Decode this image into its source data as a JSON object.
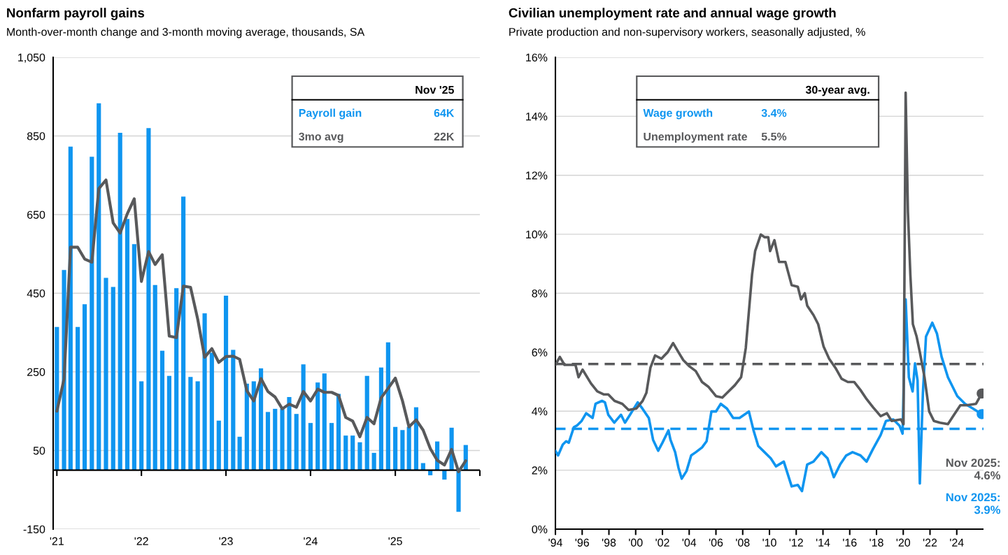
{
  "chart_data": [
    {
      "type": "bar",
      "title": "Nonfarm payroll gains",
      "subtitle": "Month-over-month change and 3-month moving average, thousands, SA",
      "x": [
        "2021-01",
        "2021-02",
        "2021-03",
        "2021-04",
        "2021-05",
        "2021-06",
        "2021-07",
        "2021-08",
        "2021-09",
        "2021-10",
        "2021-11",
        "2021-12",
        "2022-01",
        "2022-02",
        "2022-03",
        "2022-04",
        "2022-05",
        "2022-06",
        "2022-07",
        "2022-08",
        "2022-09",
        "2022-10",
        "2022-11",
        "2022-12",
        "2023-01",
        "2023-02",
        "2023-03",
        "2023-04",
        "2023-05",
        "2023-06",
        "2023-07",
        "2023-08",
        "2023-09",
        "2023-10",
        "2023-11",
        "2023-12",
        "2024-01",
        "2024-02",
        "2024-03",
        "2024-04",
        "2024-05",
        "2024-06",
        "2024-07",
        "2024-08",
        "2024-09",
        "2024-10",
        "2024-11",
        "2024-12",
        "2025-01",
        "2025-02",
        "2025-03",
        "2025-04",
        "2025-05",
        "2025-06",
        "2025-07",
        "2025-08",
        "2025-09",
        "2025-10",
        "2025-11"
      ],
      "series": [
        {
          "name": "Payroll gain",
          "type": "bar",
          "color": "#0f95f0",
          "values": [
            364,
            509,
            823,
            364,
            422,
            797,
            933,
            489,
            466,
            858,
            639,
            575,
            226,
            870,
            471,
            304,
            240,
            463,
            696,
            237,
            226,
            399,
            299,
            126,
            444,
            306,
            85,
            220,
            226,
            259,
            148,
            156,
            156,
            186,
            143,
            269,
            120,
            223,
            246,
            120,
            194,
            88,
            88,
            71,
            240,
            44,
            261,
            325,
            110,
            102,
            110,
            160,
            18,
            -13,
            73,
            -24,
            108,
            -106,
            64
          ]
        },
        {
          "name": "3mo avg",
          "type": "line",
          "color": "#58595b",
          "values": [
            150,
            232,
            567,
            567,
            537,
            529,
            716,
            738,
            629,
            603,
            652,
            690,
            480,
            556,
            523,
            548,
            341,
            337,
            468,
            465,
            384,
            287,
            309,
            274,
            289,
            290,
            282,
            202,
            176,
            233,
            200,
            186,
            156,
            168,
            160,
            200,
            176,
            206,
            198,
            198,
            190,
            134,
            125,
            85,
            134,
            118,
            184,
            208,
            234,
            176,
            110,
            128,
            102,
            55,
            25,
            13,
            53,
            -4,
            24
          ]
        }
      ],
      "legend": "top right",
      "legend_title": "Nov '25",
      "annotations": [
        "64K",
        "22K"
      ],
      "xlim": [
        "2020-12-16",
        "2026-01-01"
      ],
      "xticks": [
        {
          "value": "2021",
          "label": "'21"
        },
        {
          "value": "2022",
          "label": "'22"
        },
        {
          "value": "2023",
          "label": "'23"
        },
        {
          "value": "2024",
          "label": "'24"
        },
        {
          "value": "2025",
          "label": "'25"
        },
        {
          "value": "2026",
          "label": null
        }
      ],
      "ylim": [
        -150,
        1050
      ],
      "yticks": [
        -150,
        50,
        250,
        450,
        650,
        850,
        {
          "value": 1050,
          "label": "1,050"
        }
      ],
      "grid": "y"
    },
    {
      "type": "line",
      "title": "Civilian unemployment rate and annual wage growth",
      "subtitle": "Private production and non-supervisory workers, seasonally adjusted, %",
      "series": [
        {
          "name": "Wage growth",
          "color": "#0f95f0",
          "x": [
            1994.0,
            1994.2,
            1994.55,
            1994.8,
            1995.0,
            1995.38,
            1995.6,
            1995.96,
            1996.3,
            1996.78,
            1997.0,
            1997.48,
            1997.7,
            1997.95,
            1998.4,
            1998.9,
            1999.2,
            1999.58,
            2000.15,
            2000.5,
            2000.98,
            2001.3,
            2001.68,
            2002.0,
            2002.45,
            2002.6,
            2002.95,
            2003.2,
            2003.44,
            2003.8,
            2004.15,
            2004.5,
            2004.96,
            2005.3,
            2005.66,
            2006.0,
            2006.36,
            2006.82,
            2007.29,
            2007.76,
            2008.46,
            2008.81,
            2009.16,
            2009.63,
            2010.1,
            2010.49,
            2011.07,
            2011.66,
            2012.12,
            2012.43,
            2012.82,
            2013.29,
            2013.88,
            2014.34,
            2014.81,
            2015.28,
            2015.74,
            2016.21,
            2016.8,
            2017.26,
            2017.73,
            2018.31,
            2018.71,
            2019.25,
            2019.72,
            2019.95,
            2020.18,
            2020.42,
            2020.7,
            2020.88,
            2021.07,
            2021.24,
            2021.47,
            2021.7,
            2022.17,
            2022.52,
            2022.87,
            2023.34,
            2024.04,
            2024.62,
            2025.21,
            2025.87
          ],
          "values": [
            2.66,
            2.5,
            2.87,
            2.98,
            2.93,
            3.46,
            3.51,
            3.67,
            3.93,
            3.77,
            4.25,
            4.35,
            4.3,
            3.88,
            3.61,
            3.88,
            3.61,
            3.88,
            4.3,
            4.09,
            3.77,
            3.03,
            2.66,
            2.93,
            3.35,
            3.03,
            2.61,
            2.08,
            1.71,
            1.97,
            2.5,
            2.61,
            2.77,
            2.98,
            3.99,
            3.99,
            4.25,
            4.09,
            3.77,
            3.77,
            3.99,
            3.35,
            2.82,
            2.61,
            2.4,
            2.13,
            2.29,
            1.45,
            1.5,
            1.29,
            2.19,
            2.29,
            2.61,
            2.4,
            1.76,
            2.19,
            2.5,
            2.61,
            2.5,
            2.29,
            2.71,
            3.19,
            3.67,
            3.72,
            3.51,
            3.24,
            7.79,
            5.15,
            4.67,
            5.62,
            5.04,
            1.55,
            4.62,
            6.53,
            7.0,
            6.63,
            5.84,
            5.15,
            4.51,
            4.25,
            4.09,
            3.9
          ]
        },
        {
          "name": "Unemployment rate",
          "color": "#58595b",
          "x": [
            1994.0,
            1994.33,
            1994.68,
            1995.5,
            1995.73,
            1996.03,
            1996.66,
            1997.13,
            1997.6,
            1997.95,
            1998.42,
            1999.0,
            1999.47,
            2000.05,
            2000.52,
            2000.8,
            2001.1,
            2001.45,
            2001.92,
            2002.39,
            2002.8,
            2003.2,
            2003.56,
            2004.02,
            2004.49,
            2004.96,
            2005.43,
            2006.0,
            2006.48,
            2006.94,
            2007.41,
            2007.88,
            2008.23,
            2008.7,
            2008.93,
            2009.35,
            2009.63,
            2009.91,
            2010.05,
            2010.37,
            2010.72,
            2011.19,
            2011.66,
            2012.12,
            2012.36,
            2012.64,
            2012.82,
            2013.29,
            2013.64,
            2014.04,
            2014.46,
            2014.93,
            2015.39,
            2015.86,
            2016.33,
            2016.8,
            2017.26,
            2017.73,
            2018.31,
            2018.78,
            2019.13,
            2019.83,
            2020.02,
            2020.18,
            2020.35,
            2020.53,
            2020.72,
            2021.0,
            2021.24,
            2021.59,
            2021.94,
            2022.29,
            2022.75,
            2023.34,
            2023.8,
            2024.27,
            2024.74,
            2025.44,
            2025.87
          ],
          "values": [
            5.57,
            5.84,
            5.57,
            5.57,
            5.15,
            5.41,
            4.94,
            4.67,
            4.57,
            4.57,
            4.35,
            4.25,
            4.04,
            4.09,
            4.35,
            4.62,
            5.47,
            5.89,
            5.78,
            6.0,
            6.31,
            6.0,
            5.73,
            5.52,
            5.36,
            4.99,
            4.83,
            4.51,
            4.46,
            4.67,
            4.88,
            5.15,
            6.14,
            8.64,
            9.43,
            9.99,
            9.9,
            9.9,
            9.43,
            9.8,
            9.06,
            9.06,
            8.27,
            8.22,
            7.79,
            8.0,
            7.58,
            7.26,
            6.95,
            6.2,
            5.78,
            5.47,
            5.1,
            4.99,
            4.99,
            4.72,
            4.41,
            4.14,
            3.83,
            3.93,
            3.67,
            3.72,
            3.56,
            14.8,
            10.76,
            8.64,
            6.95,
            6.53,
            6.0,
            5.15,
            3.99,
            3.67,
            3.61,
            3.56,
            3.88,
            4.2,
            4.2,
            4.25,
            4.6
          ]
        },
        {
          "type": "scatter",
          "color": "#58595b",
          "x": [
            2025.87
          ],
          "values": [
            4.6
          ]
        },
        {
          "type": "scatter",
          "color": "#0f95f0",
          "x": [
            2025.87
          ],
          "values": [
            3.9
          ]
        }
      ],
      "legend": "top",
      "legend_title": "30-year avg.",
      "annotations": [
        "3.4%",
        "5.5%",
        "Nov 2025:\n4.6%",
        "Nov 2025:\n3.9%"
      ],
      "ref_lines": [
        {
          "axis": "y",
          "value": 3.4,
          "color": "#0f95f0",
          "line_style": "dashed"
        },
        {
          "axis": "y",
          "value": 5.6,
          "color": "#58595b",
          "line_style": "dashed"
        }
      ],
      "xlim": [
        1994,
        2026
      ],
      "xticks": [
        {
          "value": 1994,
          "label": "'94"
        },
        {
          "value": 1996,
          "label": "'96"
        },
        {
          "value": 1998,
          "label": "'98"
        },
        {
          "value": 2000,
          "label": "'00"
        },
        {
          "value": 2002,
          "label": "'02"
        },
        {
          "value": 2004,
          "label": "'04"
        },
        {
          "value": 2006,
          "label": "'06"
        },
        {
          "value": 2008,
          "label": "'08"
        },
        {
          "value": 2010,
          "label": "'10"
        },
        {
          "value": 2012,
          "label": "'12"
        },
        {
          "value": 2014,
          "label": "'14"
        },
        {
          "value": 2016,
          "label": "'16"
        },
        {
          "value": 2018,
          "label": "'18"
        },
        {
          "value": 2020,
          "label": "'20"
        },
        {
          "value": 2022,
          "label": "'22"
        },
        {
          "value": 2024,
          "label": "'24"
        }
      ],
      "ylim": [
        0,
        16
      ],
      "yticks": [
        {
          "value": 0,
          "label": "0%"
        },
        {
          "value": 2,
          "label": "2%"
        },
        {
          "value": 4,
          "label": "4%"
        },
        {
          "value": 6,
          "label": "6%"
        },
        {
          "value": 8,
          "label": "8%"
        },
        {
          "value": 10,
          "label": "10%"
        },
        {
          "value": 12,
          "label": "12%"
        },
        {
          "value": 14,
          "label": "14%"
        },
        {
          "value": 16,
          "label": "16%"
        }
      ],
      "grid": "y"
    }
  ]
}
